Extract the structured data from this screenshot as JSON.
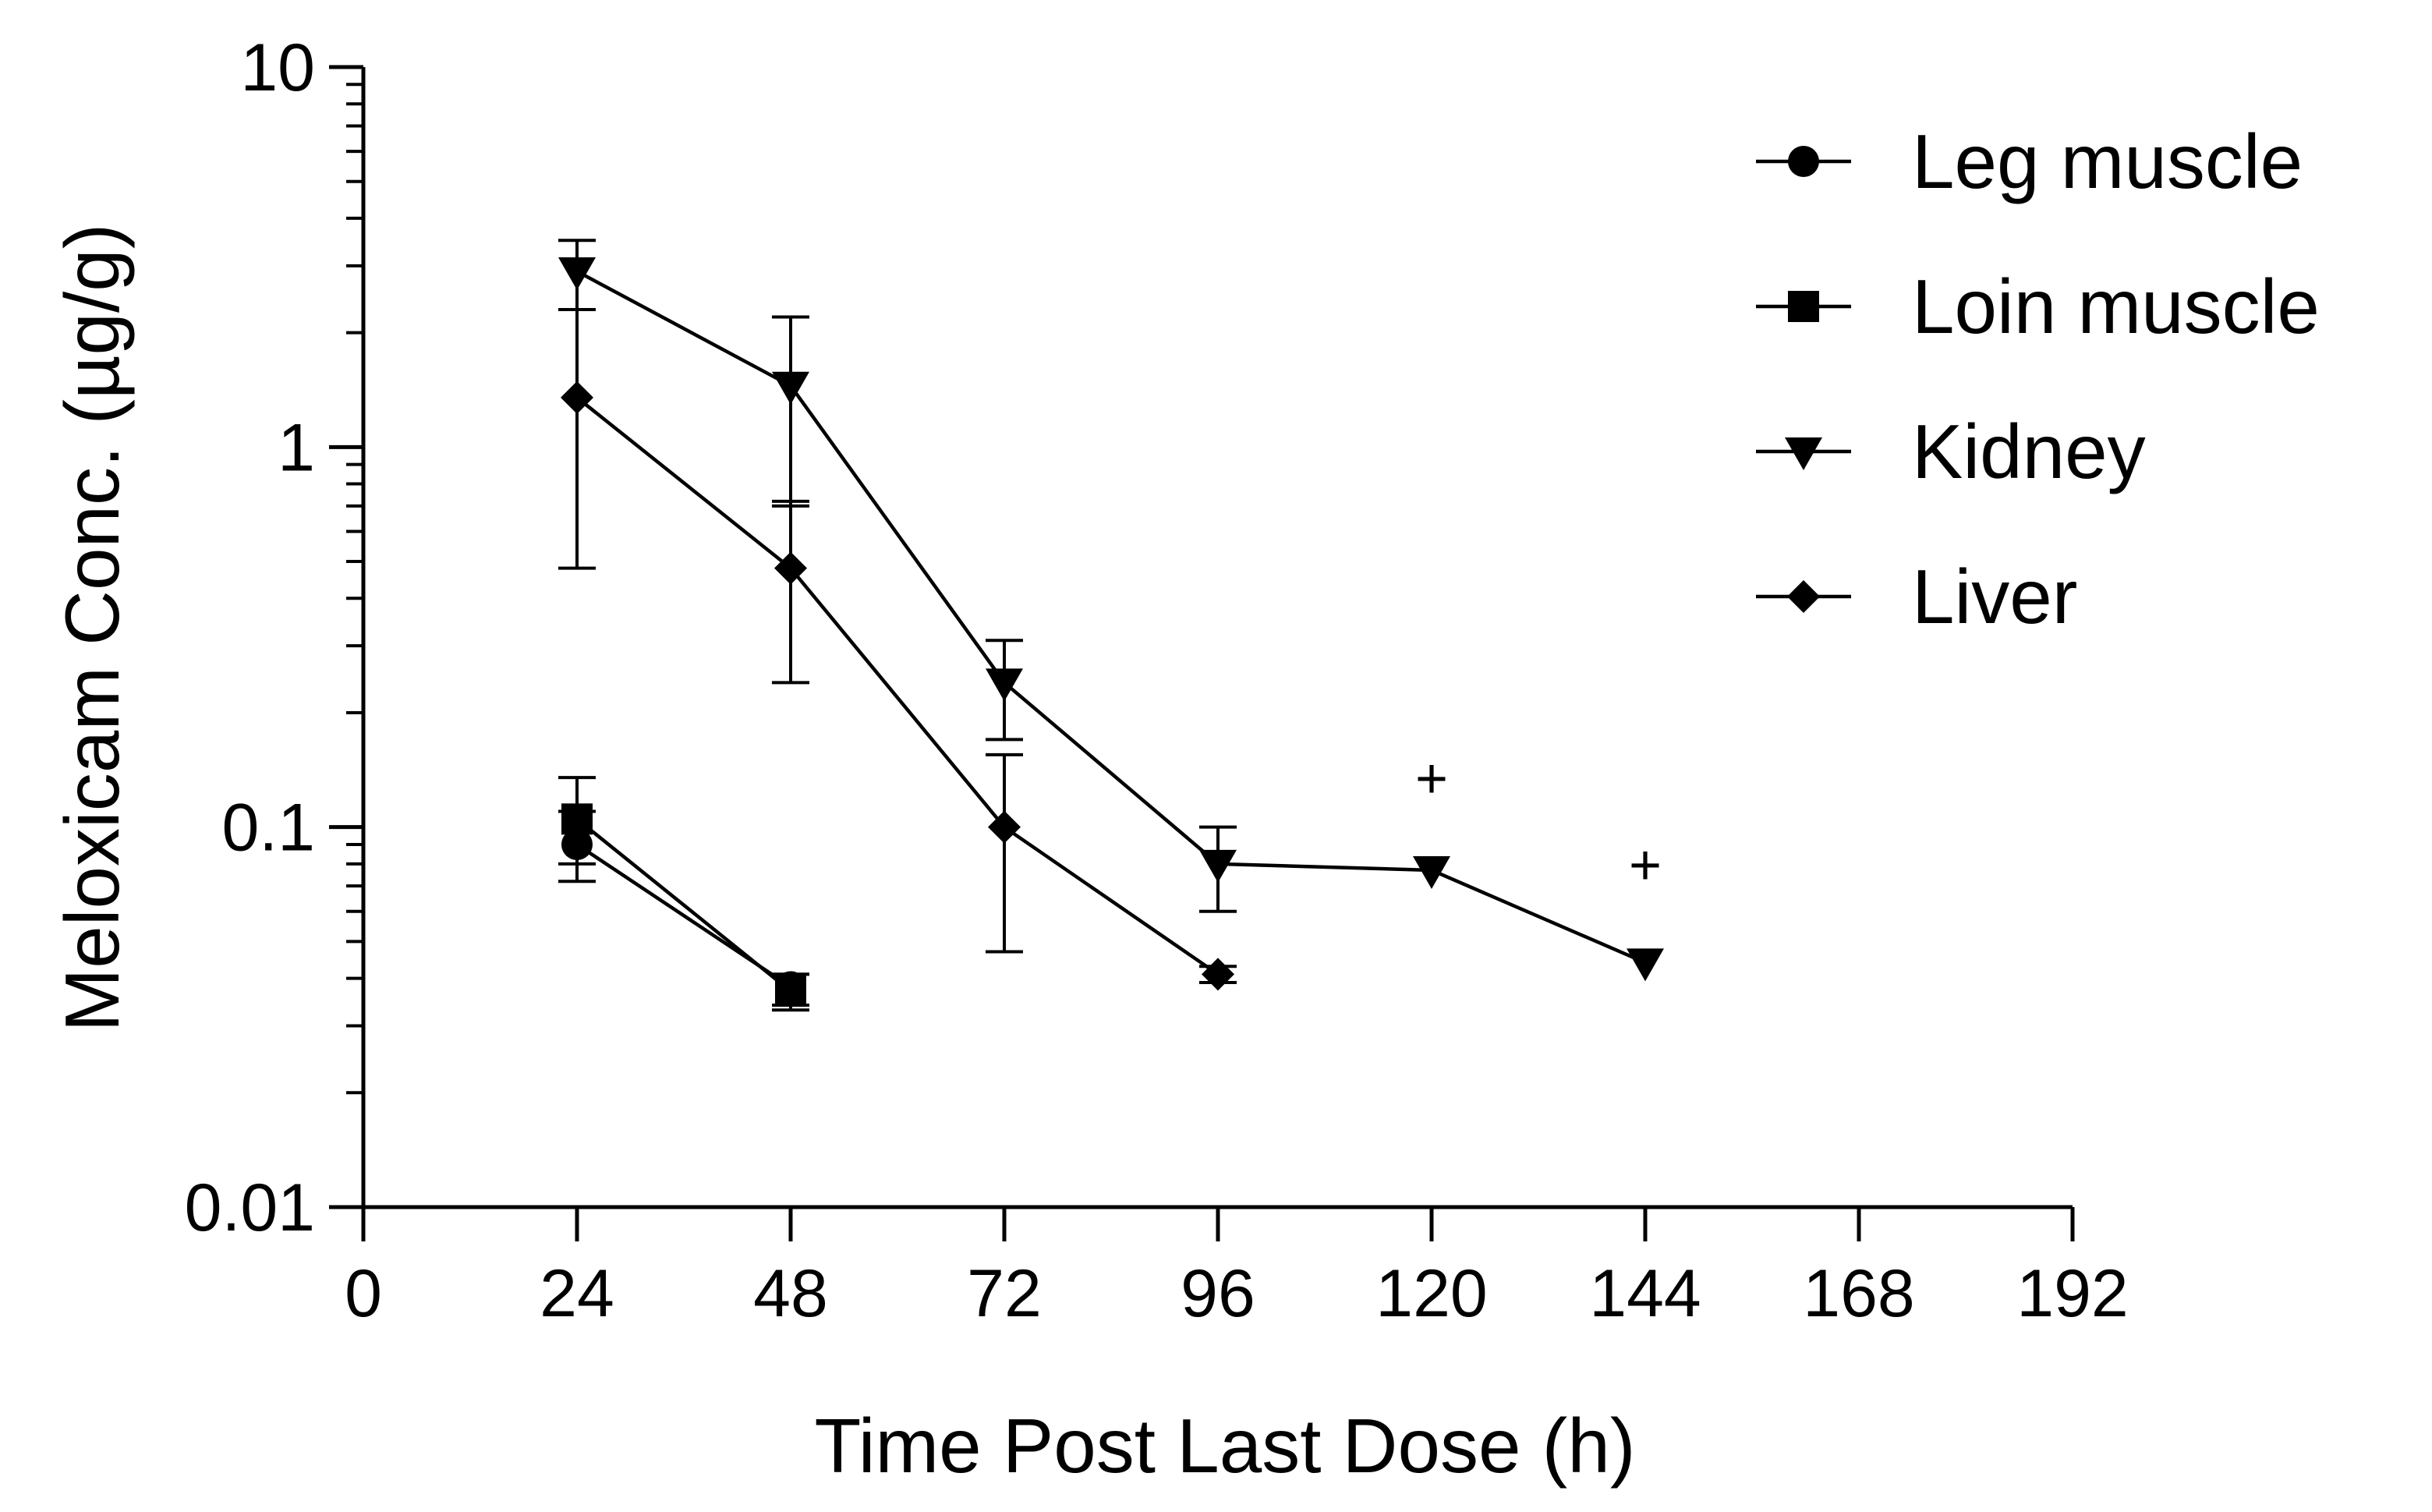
{
  "chart_data": {
    "type": "line",
    "title": "",
    "xlabel": "Time Post Last Dose (h)",
    "ylabel": "Meloxicam Conc. (µg/g)",
    "xlim": [
      0,
      192
    ],
    "ylim": [
      0.01,
      10
    ],
    "yscale": "log",
    "grid": false,
    "legend_position": "top-right",
    "x_ticks": [
      "0",
      "24",
      "48",
      "72",
      "96",
      "120",
      "144",
      "168",
      "192"
    ],
    "y_ticks": [
      "0.01",
      "0.1",
      "1",
      "10"
    ],
    "series": [
      {
        "name": "Leg muscle",
        "marker": "circle",
        "x": [
          24,
          48
        ],
        "y": [
          0.09,
          0.038
        ],
        "err_upper": [
          0.11,
          0.041
        ],
        "err_lower": [
          0.072,
          0.034
        ]
      },
      {
        "name": "Loin muscle",
        "marker": "square",
        "x": [
          24,
          48
        ],
        "y": [
          0.105,
          0.037
        ],
        "err_upper": [
          0.135,
          0.041
        ],
        "err_lower": [
          0.08,
          0.033
        ]
      },
      {
        "name": "Kidney",
        "marker": "triangle-down",
        "x": [
          24,
          48,
          72,
          96,
          120,
          144
        ],
        "y": [
          2.9,
          1.45,
          0.24,
          0.08,
          0.077,
          0.044
        ],
        "err_upper": [
          3.5,
          2.2,
          0.31,
          0.1,
          null,
          null
        ],
        "err_lower": [
          2.3,
          0.7,
          0.17,
          0.06,
          null,
          null
        ]
      },
      {
        "name": "Liver",
        "marker": "diamond",
        "x": [
          24,
          48,
          72,
          96
        ],
        "y": [
          1.35,
          0.48,
          0.1,
          0.041
        ],
        "err_upper": [
          2.3,
          0.72,
          0.155,
          0.043
        ],
        "err_lower": [
          0.48,
          0.24,
          0.047,
          0.039
        ]
      }
    ],
    "annotations": [
      {
        "text": "+",
        "x": 120,
        "y": 0.135
      },
      {
        "text": "+",
        "x": 144,
        "y": 0.08
      }
    ]
  }
}
